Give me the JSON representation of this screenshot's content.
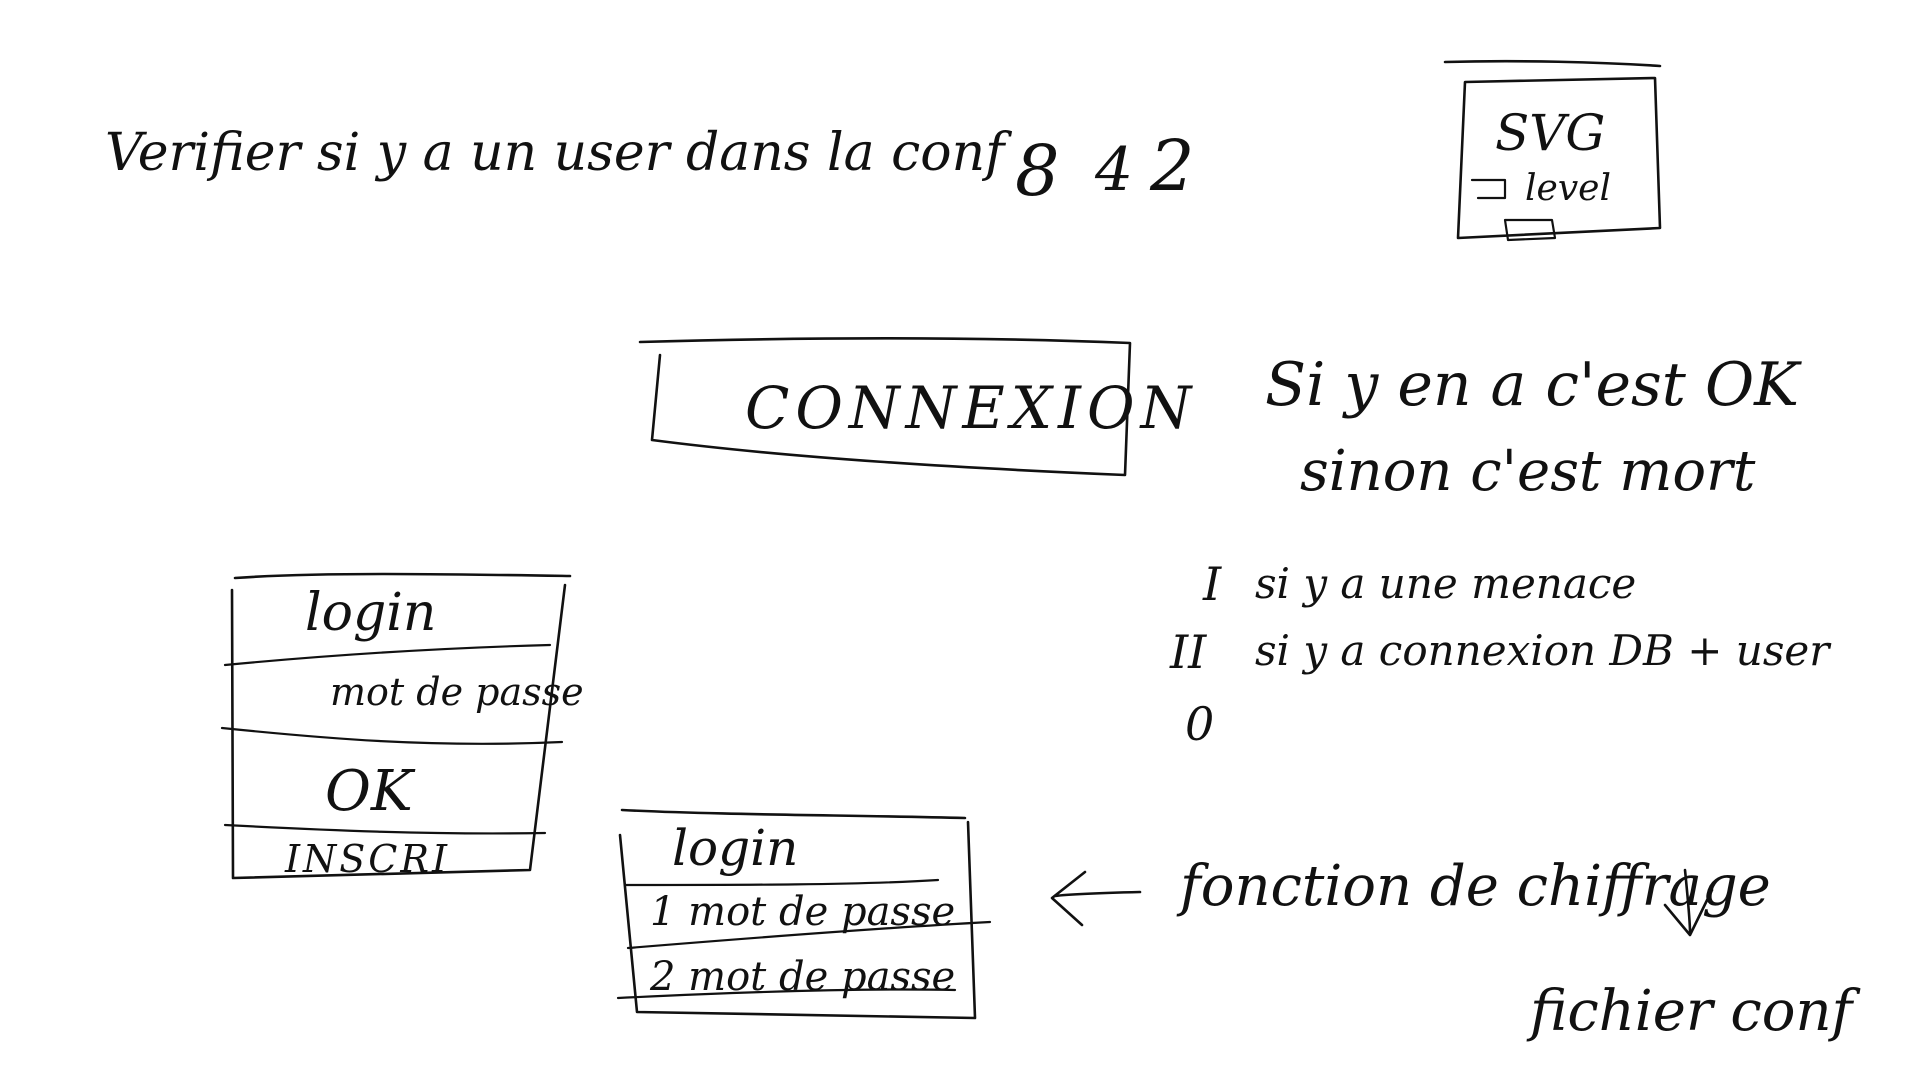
{
  "notes": {
    "top_line": "Verifier si y a un user dans la conf",
    "numbers": [
      "8",
      "4",
      "2"
    ],
    "svg_box": {
      "title": "SVG",
      "level_label": "level"
    },
    "connexion_button": "CONNEXION",
    "condition_line_1": "Si y en a c'est OK",
    "condition_line_2": "sinon c'est mort",
    "list_items": [
      {
        "marker": "I",
        "text": "si y a une menace"
      },
      {
        "marker": "II",
        "text": "si y a connexion DB + user"
      },
      {
        "marker": "0",
        "text": ""
      }
    ],
    "function_label": "fonction de chiffrage",
    "config_file": "fichier conf"
  },
  "login_form": {
    "login": "login",
    "password": "mot de passe",
    "ok": "OK",
    "register": "INSCRI"
  },
  "signup_form": {
    "login": "login",
    "password_1": "1 mot de passe",
    "password_2": "2 mot de passe"
  }
}
